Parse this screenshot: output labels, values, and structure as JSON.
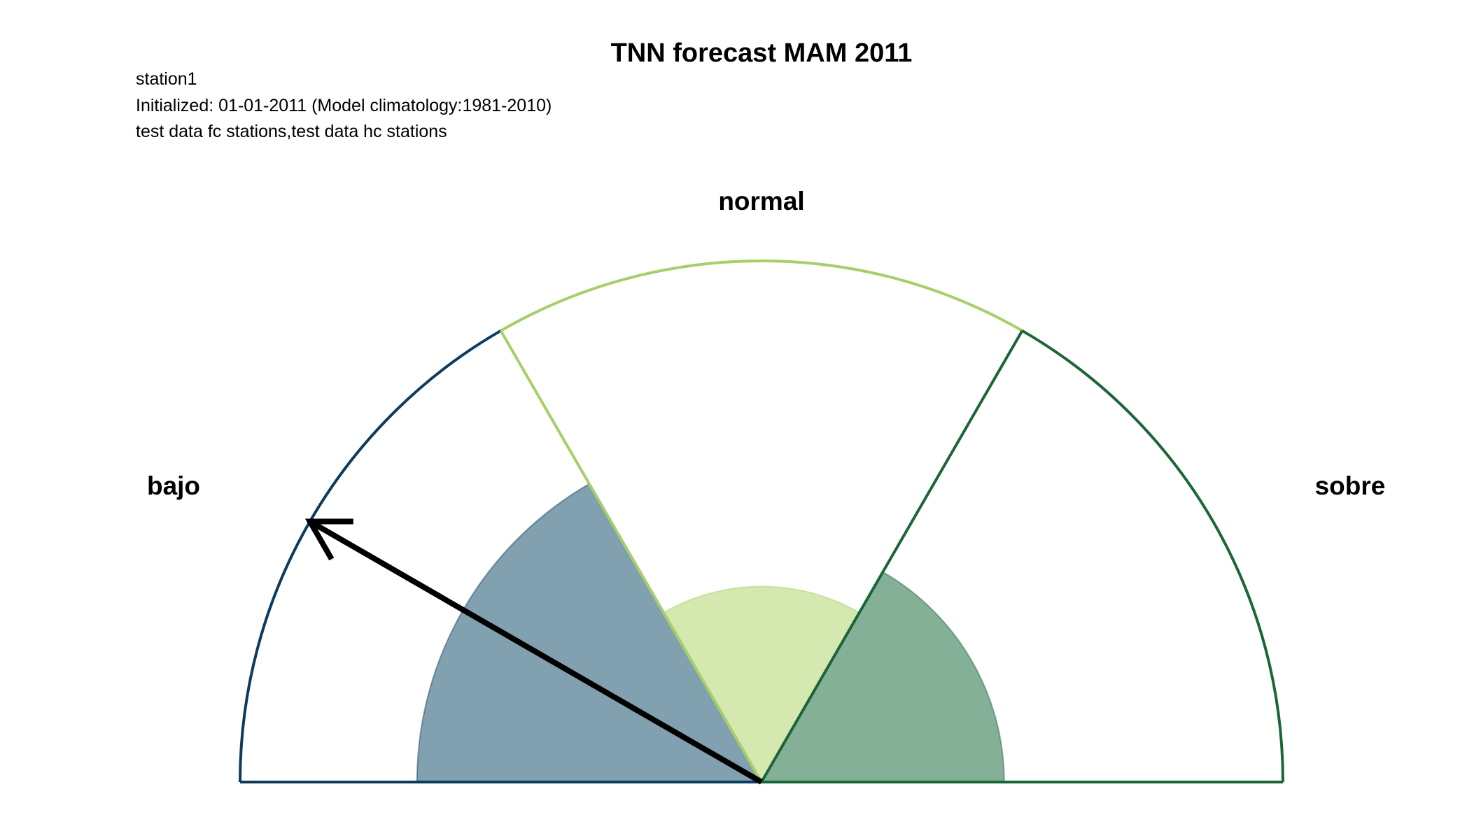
{
  "chart_data": {
    "type": "dial",
    "title": "TNN forecast MAM 2011",
    "subtitle_lines": [
      "station1",
      "Initialized: 01-01-2011 (Model climatology:1981-2010)",
      "test data fc stations,test data hc stations"
    ],
    "categories": [
      "bajo",
      "normal",
      "sobre"
    ],
    "category_colors": [
      "#0d3b5e",
      "#a6cf6a",
      "#1b6637"
    ],
    "fill_colors": [
      "#81a0b0",
      "#d5e8b0",
      "#85b098"
    ],
    "climatology_probability": [
      0.333,
      0.333,
      0.333
    ],
    "forecast_probability": [
      0.44,
      0.25,
      0.31
    ],
    "arrow_angle_deg": 150
  }
}
